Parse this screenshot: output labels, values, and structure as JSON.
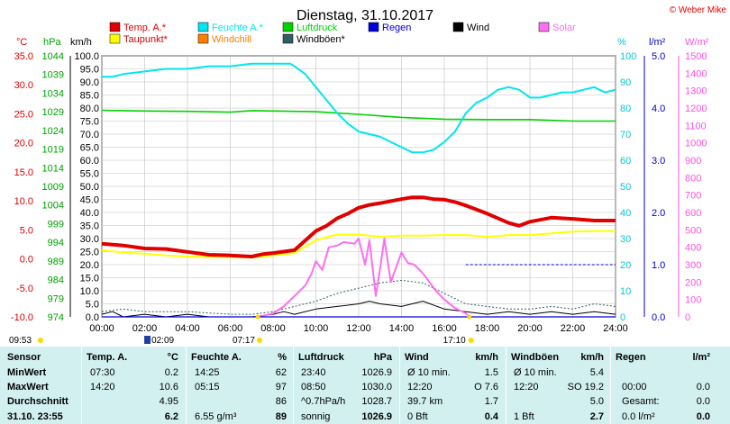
{
  "title": "Dienstag, 31.10.2017",
  "copyright": "© Weber Mike",
  "colors": {
    "temp": "#e00000",
    "taupunkt": "#ffff00",
    "feuchte": "#00e6f0",
    "windchill": "#ff7f00",
    "luftdruck": "#00d200",
    "windboeen": "#2e6060",
    "regen": "#0000d8",
    "wind": "#000000",
    "solar": "#ff6ef0",
    "axis_temp": "#e00000",
    "axis_hpa": "#00a000",
    "axis_pct": "#00c8d8",
    "axis_rain": "#0000c8",
    "axis_solar": "#ff50e0",
    "stats_bg": "#d2f0f0"
  },
  "axes": {
    "temp": {
      "label": "°C",
      "ticks": [
        "35.0",
        "30.0",
        "25.0",
        "20.0",
        "15.0",
        "10.0",
        "5.0",
        "0.0",
        "-5.0",
        "-10.0"
      ]
    },
    "hpa": {
      "label": "hPa",
      "ticks": [
        "1044",
        "1039",
        "1034",
        "1029",
        "1024",
        "1019",
        "1014",
        "1009",
        "1004",
        "999",
        "994",
        "989",
        "984",
        "979",
        "974"
      ]
    },
    "kmh": {
      "label": "km/h",
      "ticks": [
        "100.0",
        "95.0",
        "90.0",
        "85.0",
        "80.0",
        "75.0",
        "70.0",
        "65.0",
        "60.0",
        "55.0",
        "50.0",
        "45.0",
        "40.0",
        "35.0",
        "30.0",
        "25.0",
        "20.0",
        "15.0",
        "10.0",
        "5.0",
        "0.0"
      ]
    },
    "pct": {
      "label": "%",
      "ticks": [
        "100",
        "90",
        "80",
        "70",
        "60",
        "50",
        "40",
        "30",
        "20",
        "10",
        "0"
      ]
    },
    "rain": {
      "label": "l/m²",
      "ticks": [
        "5.0",
        "4.0",
        "3.0",
        "2.0",
        "1.0",
        "0.0"
      ]
    },
    "solar": {
      "label": "W/m²",
      "ticks": [
        "1500",
        "1400",
        "1300",
        "1200",
        "1100",
        "1000",
        "900",
        "800",
        "700",
        "600",
        "500",
        "400",
        "300",
        "200",
        "100",
        "0"
      ]
    },
    "time": {
      "ticks": [
        "00:00",
        "02:00",
        "04:00",
        "06:00",
        "08:00",
        "10:00",
        "12:00",
        "14:00",
        "16:00",
        "18:00",
        "20:00",
        "22:00",
        "24:00"
      ]
    }
  },
  "legend": [
    {
      "key": "temp",
      "label": "Temp. A.*"
    },
    {
      "key": "feuchte",
      "label": "Feuchte A.*"
    },
    {
      "key": "luftdruck",
      "label": "Luftdruck"
    },
    {
      "key": "regen",
      "label": "Regen"
    },
    {
      "key": "wind",
      "label": "Wind"
    },
    {
      "key": "solar",
      "label": "Solar"
    },
    {
      "key": "taupunkt",
      "label": "Taupunkt*"
    },
    {
      "key": "windchill",
      "label": "Windchill"
    },
    {
      "key": "windboeen",
      "label": "Windböen*"
    }
  ],
  "sun": {
    "rise": "07:17",
    "set": "17:10",
    "moon_rise": "09:53",
    "moon_set": "02:09"
  },
  "chart_data": {
    "type": "line",
    "x_unit": "hour of day",
    "xlim": [
      0,
      24
    ],
    "series": [
      {
        "name": "Temp. A.*",
        "axis": "temp",
        "x": [
          0,
          1,
          2,
          3,
          4,
          5,
          6,
          7,
          7.5,
          8,
          9,
          10,
          10.5,
          11,
          11.5,
          12,
          12.5,
          13,
          14,
          14.5,
          15,
          15.5,
          16,
          16.5,
          17,
          17.5,
          18,
          19,
          19.5,
          20,
          21,
          22,
          23,
          24
        ],
        "y": [
          2.6,
          2.3,
          1.8,
          1.7,
          1.2,
          0.7,
          0.6,
          0.4,
          0.8,
          1.0,
          1.5,
          4.8,
          5.7,
          7.0,
          7.8,
          8.8,
          9.3,
          9.6,
          10.3,
          10.6,
          10.6,
          10.3,
          10.2,
          9.8,
          9.2,
          8.5,
          7.8,
          6.2,
          5.7,
          6.4,
          7.1,
          6.9,
          6.6,
          6.6
        ]
      },
      {
        "name": "Taupunkt*",
        "axis": "temp",
        "x": [
          0,
          1,
          2,
          3,
          4,
          5,
          6,
          7,
          8,
          9,
          10,
          11,
          12,
          13,
          14,
          15,
          16,
          17,
          18,
          19,
          20,
          21,
          22,
          23,
          24
        ],
        "y": [
          1.5,
          1.1,
          0.9,
          0.6,
          0.4,
          0.3,
          0.3,
          0.2,
          0.6,
          1.0,
          3.2,
          4.2,
          4.2,
          3.8,
          4.0,
          4.0,
          4.1,
          4.1,
          3.8,
          4.1,
          4.1,
          4.4,
          4.7,
          4.8,
          4.8
        ]
      },
      {
        "name": "Feuchte A.*",
        "axis": "pct",
        "x": [
          0,
          0.5,
          1,
          2,
          3,
          4,
          5,
          6,
          7,
          8,
          8.8,
          9,
          9.5,
          10,
          10.5,
          11,
          11.5,
          12,
          13,
          14,
          14.5,
          15,
          15.5,
          16,
          16.5,
          17,
          17.5,
          18,
          18.5,
          19,
          19.5,
          20,
          20.5,
          21,
          21.5,
          22,
          22.5,
          23,
          23.5,
          24
        ],
        "y": [
          92,
          92,
          93,
          94,
          95,
          95,
          96,
          96,
          97,
          97,
          97,
          96,
          93,
          88,
          83,
          78,
          74,
          71,
          69,
          65,
          63,
          63,
          64,
          67,
          71,
          78,
          82,
          84,
          87,
          88,
          87,
          84,
          84,
          85,
          86,
          86,
          87,
          88,
          86,
          87
        ]
      },
      {
        "name": "Luftdruck",
        "axis": "hpa",
        "x": [
          0,
          1,
          2,
          4,
          6,
          7,
          8,
          10,
          12,
          14,
          16,
          18,
          20,
          22,
          24
        ],
        "y": [
          1029.4,
          1029.3,
          1029.2,
          1029.1,
          1028.9,
          1029.3,
          1029.2,
          1029.0,
          1028.3,
          1027.5,
          1027.0,
          1026.9,
          1026.9,
          1026.5,
          1026.5
        ]
      },
      {
        "name": "Solar",
        "axis": "solar",
        "x": [
          7.3,
          8,
          8.5,
          9,
          9.5,
          9.8,
          10,
          10.3,
          10.6,
          11,
          11.3,
          11.8,
          12,
          12.3,
          12.5,
          12.8,
          13,
          13.2,
          13.5,
          14,
          14.3,
          14.6,
          15,
          15.3,
          15.6,
          16,
          16.5,
          17,
          17.2
        ],
        "y": [
          0,
          20,
          60,
          120,
          180,
          250,
          320,
          270,
          400,
          410,
          430,
          420,
          450,
          300,
          440,
          120,
          280,
          450,
          200,
          370,
          310,
          300,
          250,
          200,
          150,
          100,
          50,
          20,
          0
        ]
      },
      {
        "name": "Wind",
        "axis": "kmh",
        "x": [
          0,
          0.5,
          1,
          2,
          3,
          4,
          5,
          6,
          7,
          8,
          8.5,
          9,
          10,
          11,
          12,
          12.5,
          13,
          14,
          15,
          16,
          17,
          18,
          19,
          20,
          21,
          22,
          23,
          24
        ],
        "y": [
          1,
          2,
          0,
          1,
          0,
          1,
          0,
          0,
          0,
          1,
          2,
          1,
          3,
          4,
          5,
          6,
          5,
          4,
          6,
          3,
          2,
          1,
          2,
          1,
          2,
          1,
          2,
          1
        ]
      },
      {
        "name": "Windböen*",
        "axis": "kmh",
        "x": [
          0,
          1,
          2,
          4,
          6,
          7,
          8,
          9,
          10,
          11,
          12,
          13,
          14,
          15,
          16,
          17,
          18,
          19,
          20,
          21,
          22,
          23,
          24
        ],
        "y": [
          2,
          3,
          2,
          2,
          1,
          1,
          2,
          4,
          6,
          9,
          11,
          13,
          14,
          13,
          9,
          5,
          4,
          3,
          3,
          4,
          3,
          5,
          4
        ]
      },
      {
        "name": "Regen",
        "axis": "rain",
        "x": [
          0,
          24
        ],
        "y": [
          0,
          0
        ]
      }
    ]
  },
  "stats": {
    "header": {
      "sensor": "Sensor",
      "temp": "Temp. A.",
      "temp_u": "°C",
      "feuchte": "Feuchte A.",
      "feuchte_u": "%",
      "druck": "Luftdruck",
      "druck_u": "hPa",
      "wind": "Wind",
      "wind_u": "km/h",
      "boeen": "Windböen",
      "boeen_u": "km/h",
      "regen": "Regen",
      "regen_u": "l/m²"
    },
    "min": {
      "label": "MinWert",
      "temp_t": "07:30",
      "temp_v": "0.2",
      "feuchte_t": "14:25",
      "feuchte_v": "62",
      "druck_t": "23:40",
      "druck_v": "1026.9",
      "wind_t": "Ø 10 min.",
      "wind_v": "1.5",
      "boeen_t": "Ø 10 min.",
      "boeen_v": "5.4"
    },
    "max": {
      "label": "MaxWert",
      "temp_t": "14:20",
      "temp_v": "10.6",
      "feuchte_t": "05:15",
      "feuchte_v": "97",
      "druck_t": "08:50",
      "druck_v": "1030.0",
      "wind_t": "12:20",
      "wind_d": "O 7.6",
      "boeen_t": "12:20",
      "boeen_d": "SO 19.2",
      "regen_t": "00:00",
      "regen_v": "0.0"
    },
    "avg": {
      "label": "Durchschnitt",
      "temp_v": "4.95",
      "feuchte_v": "86",
      "druck_t": "^0.7hPa/h",
      "druck_v": "1028.7",
      "wind_t": "39.7 km",
      "wind_v": "1.7",
      "boeen_v": "5.0",
      "regen_t": "Gesamt:",
      "regen_v": "0.0"
    },
    "now": {
      "label": "31.10. 23:55",
      "temp_v": "6.2",
      "feuchte_t": "6.55 g/m³",
      "feuchte_v": "89",
      "druck_t": "sonnig",
      "druck_v": "1026.9",
      "wind_t": "0 Bft",
      "wind_v": "0.4",
      "boeen_t": "1 Bft",
      "boeen_v": "2.7",
      "regen_t": "0.0 l/m²",
      "regen_v": "0.0"
    }
  }
}
